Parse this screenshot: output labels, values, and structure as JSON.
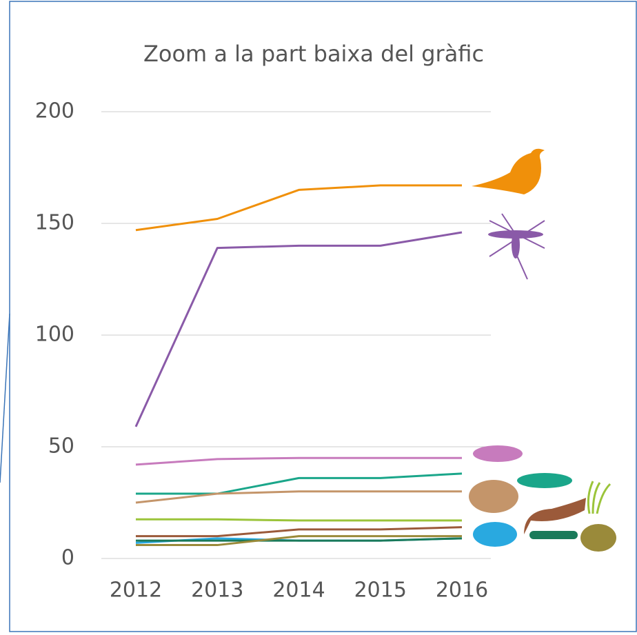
{
  "chart_data": {
    "type": "line",
    "title": "Zoom a la part baixa del gràfic",
    "categories": [
      "2012",
      "2013",
      "2014",
      "2015",
      "2016"
    ],
    "series": [
      {
        "color": "#f0900a",
        "values": [
          147,
          152,
          165,
          167,
          167
        ]
      },
      {
        "color": "#8a5aa8",
        "values": [
          59,
          139,
          140,
          140,
          146
        ]
      },
      {
        "color": "#c77bbd",
        "values": [
          42,
          44.5,
          45,
          45,
          45
        ]
      },
      {
        "color": "#1aa68a",
        "values": [
          29,
          29,
          36,
          36,
          38
        ]
      },
      {
        "color": "#c4956a",
        "values": [
          25,
          29,
          30,
          30,
          30
        ]
      },
      {
        "color": "#9bc43a",
        "values": [
          17.5,
          17.5,
          17,
          17,
          17
        ]
      },
      {
        "color": "#9b5a3a",
        "values": [
          10,
          10,
          13,
          13,
          14
        ]
      },
      {
        "color": "#29a9e0",
        "values": [
          7,
          9,
          8,
          8,
          9
        ]
      },
      {
        "color": "#1a7a5a",
        "values": [
          8,
          8,
          8,
          8,
          9
        ]
      },
      {
        "color": "#9a8a3a",
        "values": [
          6,
          6,
          10,
          10,
          10
        ]
      }
    ],
    "ylim": [
      0,
      200
    ],
    "yticks": [
      0,
      50,
      100,
      150,
      200
    ],
    "grid": true
  }
}
